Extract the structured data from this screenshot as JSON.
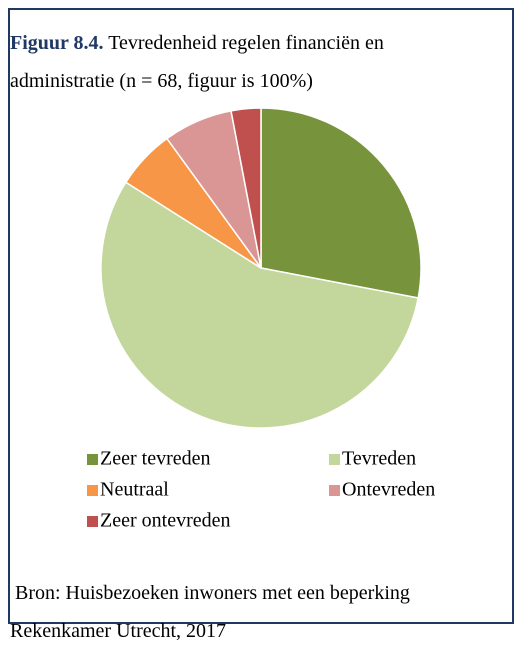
{
  "chart_data": {
    "type": "pie",
    "figure_label": "Figuur 8.4.",
    "title": "Tevredenheid regelen financiën en administratie (n = 68, figuur is 100%)",
    "categories": [
      "Zeer tevreden",
      "Tevreden",
      "Neutraal",
      "Ontevreden",
      "Zeer ontevreden"
    ],
    "values": [
      28,
      56,
      6,
      7,
      3
    ],
    "colors": [
      "#77933c",
      "#c3d69b",
      "#f79646",
      "#d99694",
      "#c0504d"
    ],
    "source": [
      "Bron: Huisbezoeken inwoners met een beperking",
      "Rekenkamer Utrecht, 2017"
    ]
  }
}
